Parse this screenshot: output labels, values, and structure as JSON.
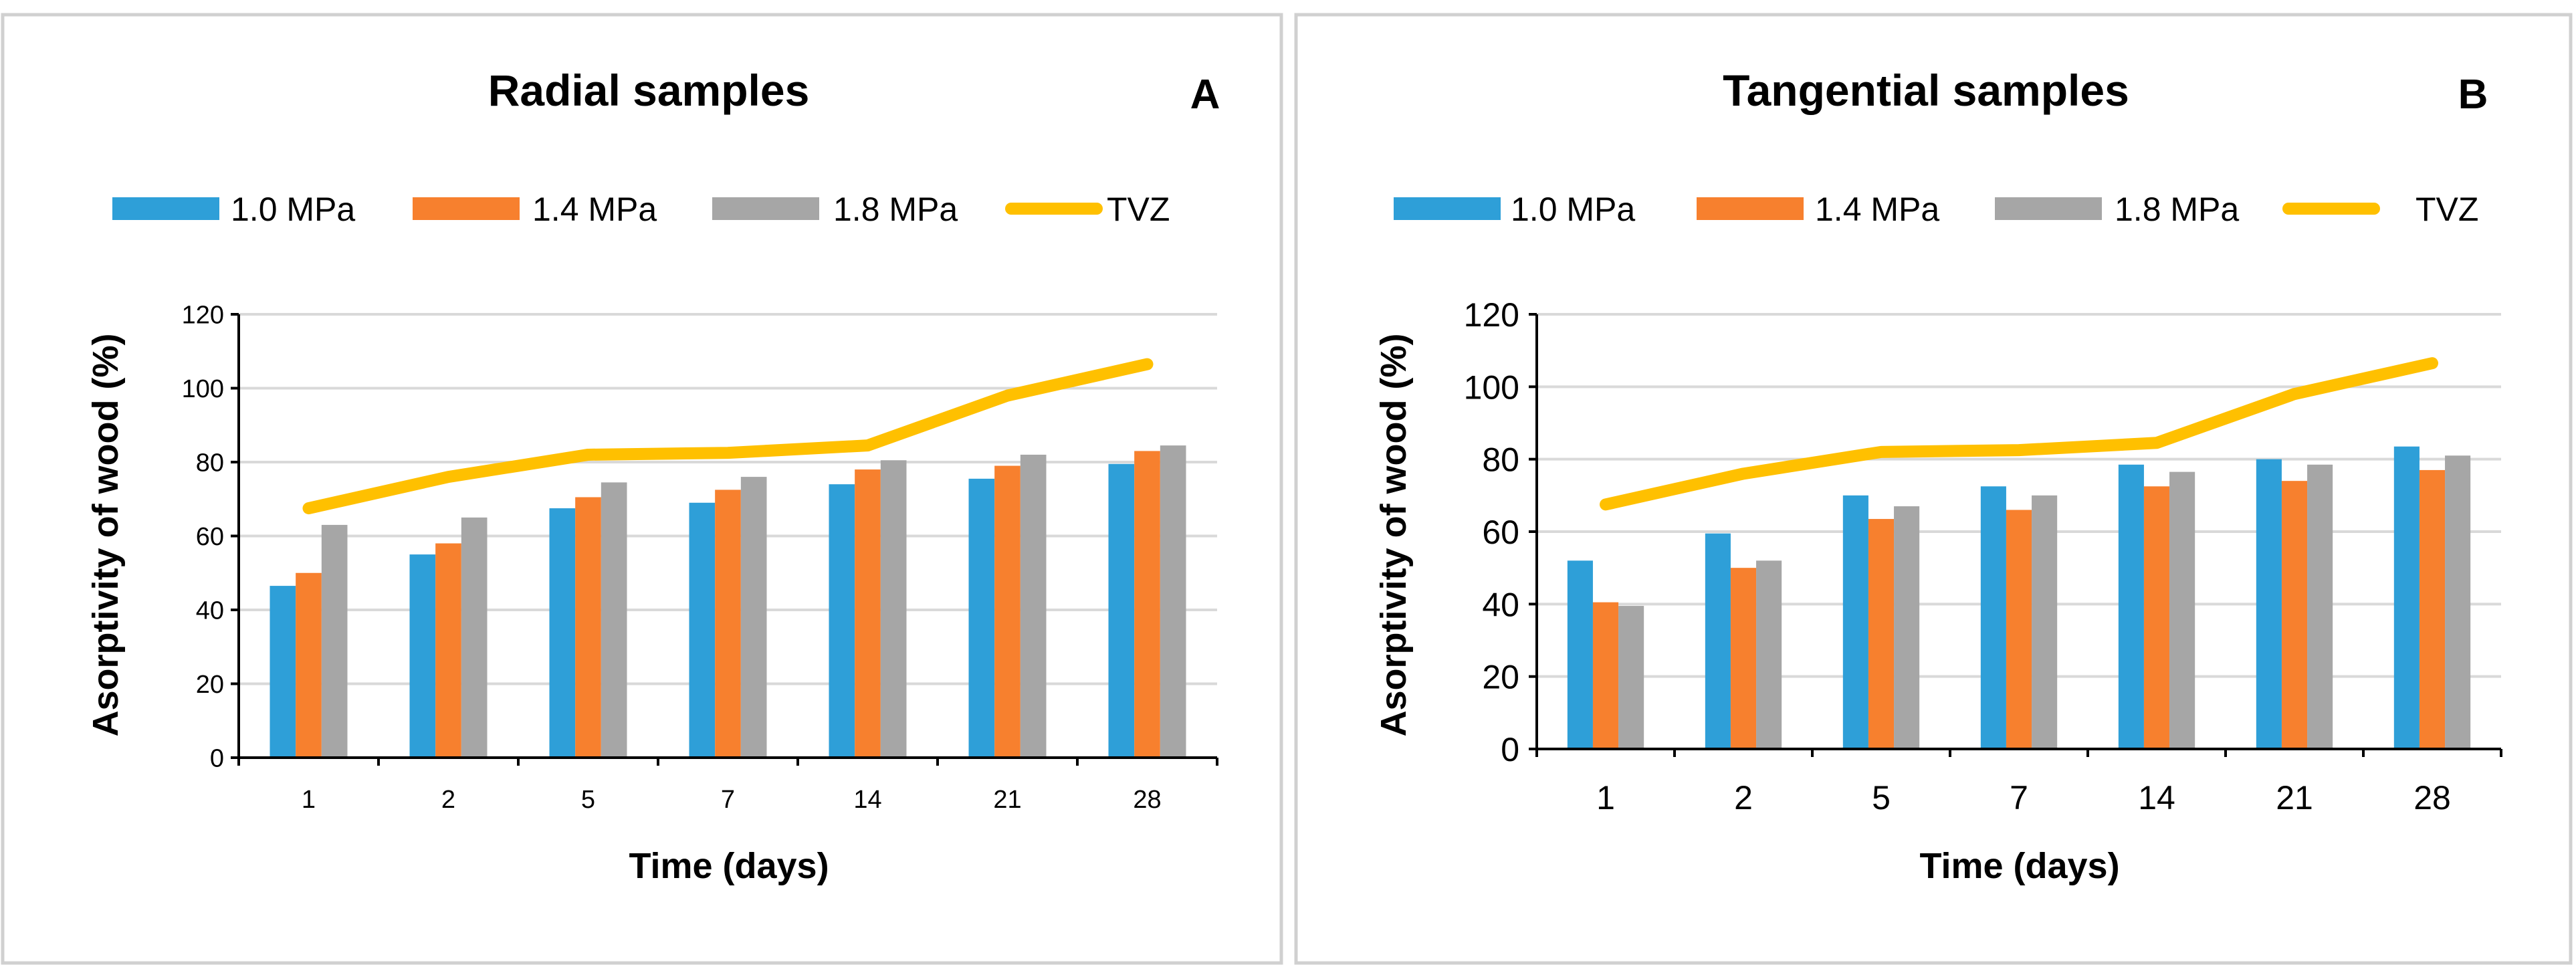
{
  "colors": {
    "mpa10": "#2e9fd8",
    "mpa14": "#f7802e",
    "mpa18": "#a6a6a6",
    "tvz": "#ffc000",
    "grid": "#d9d9d9",
    "frame": "#d0d0d0"
  },
  "chart_data": [
    {
      "type": "bar",
      "title": "Radial samples",
      "panel_letter": "A",
      "xlabel": "Time (days)",
      "ylabel": "Asorptivity of wood (%)",
      "ylim": [
        0,
        120
      ],
      "yticks": [
        "0",
        "20",
        "40",
        "60",
        "80",
        "100",
        "120"
      ],
      "categories": [
        "1",
        "2",
        "5",
        "7",
        "14",
        "21",
        "28"
      ],
      "legend": [
        "1.0 MPa",
        "1.4 MPa",
        "1.8 MPa",
        "TVZ"
      ],
      "series": [
        {
          "name": "1.0 MPa",
          "type": "bar",
          "values": [
            46.5,
            55,
            67.5,
            69,
            74,
            75.5,
            79.5
          ]
        },
        {
          "name": "1.4 MPa",
          "type": "bar",
          "values": [
            50,
            58,
            70.5,
            72.5,
            78,
            79,
            83
          ]
        },
        {
          "name": "1.8 MPa",
          "type": "bar",
          "values": [
            63,
            65,
            74.5,
            76,
            80.5,
            82,
            84.5
          ]
        },
        {
          "name": "TVZ",
          "type": "line",
          "values": [
            67.5,
            76,
            82,
            82.5,
            84.5,
            98,
            106.5
          ]
        }
      ]
    },
    {
      "type": "bar",
      "title": "Tangential samples",
      "panel_letter": "B",
      "xlabel": "Time (days)",
      "ylabel": "Asorptivity of wood (%)",
      "ylim": [
        0,
        120
      ],
      "yticks": [
        "0",
        "20",
        "40",
        "60",
        "80",
        "100",
        "120"
      ],
      "categories": [
        "1",
        "2",
        "5",
        "7",
        "14",
        "21",
        "28"
      ],
      "legend": [
        "1.0 MPa",
        "1.4 MPa",
        "1.8 MPa",
        "TVZ"
      ],
      "series": [
        {
          "name": "1.0 MPa",
          "type": "bar",
          "values": [
            52,
            59.5,
            70,
            72.5,
            78.5,
            80,
            83.5
          ]
        },
        {
          "name": "1.4 MPa",
          "type": "bar",
          "values": [
            40.5,
            50,
            63.5,
            66,
            72.5,
            74,
            77
          ]
        },
        {
          "name": "1.8 MPa",
          "type": "bar",
          "values": [
            39.5,
            52,
            67,
            70,
            76.5,
            78.5,
            81
          ]
        },
        {
          "name": "TVZ",
          "type": "line",
          "values": [
            67.5,
            76,
            82,
            82.5,
            84.5,
            98,
            106.5
          ]
        }
      ]
    }
  ]
}
